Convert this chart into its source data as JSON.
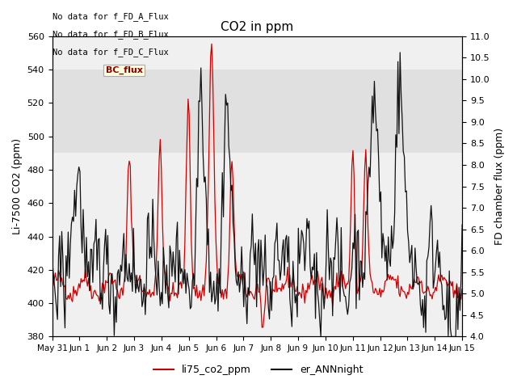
{
  "title": "CO2 in ppm",
  "ylabel_left": "Li-7500 CO2 (ppm)",
  "ylabel_right": "FD chamber flux (ppm)",
  "ylim_left": [
    380,
    560
  ],
  "ylim_right": [
    4.0,
    11.0
  ],
  "yticks_left": [
    380,
    400,
    420,
    440,
    460,
    480,
    500,
    520,
    540,
    560
  ],
  "yticks_right": [
    4.0,
    4.5,
    5.0,
    5.5,
    6.0,
    6.5,
    7.0,
    7.5,
    8.0,
    8.5,
    9.0,
    9.5,
    10.0,
    10.5,
    11.0
  ],
  "xtick_labels": [
    "May 31",
    "Jun 1",
    "Jun 2",
    "Jun 3",
    "Jun 4",
    "Jun 5",
    "Jun 6",
    "Jun 7",
    "Jun 8",
    "Jun 9",
    "Jun 10",
    "Jun 11",
    "Jun 12",
    "Jun 13",
    "Jun 14",
    "Jun 15"
  ],
  "legend_labels": [
    "li75_co2_ppm",
    "er_ANNnight"
  ],
  "legend_colors": [
    "#cc0000",
    "#111111"
  ],
  "annotation_lines": [
    "No data for f_FD_A_Flux",
    "No data for f_FD_B_Flux",
    "No data for f_FD_C_Flux"
  ],
  "bc_flux_label": "BC_flux",
  "shaded_band_ylim": [
    490,
    540
  ],
  "background_color": "#ffffff",
  "plot_bg_color": "#f0f0f0",
  "band_color": "#e0e0e0"
}
